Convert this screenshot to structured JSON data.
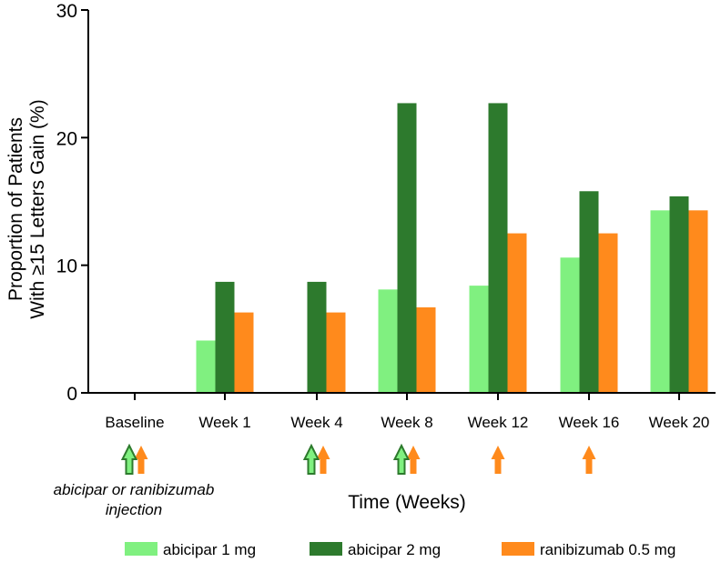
{
  "chart_data": {
    "type": "bar",
    "title": "",
    "xlabel": "Time (Weeks)",
    "ylabel_lines": [
      "Proportion of Patients",
      "With ≥15 Letters Gain (%)"
    ],
    "ylim": [
      0,
      30
    ],
    "yticks": [
      0,
      10,
      20,
      30
    ],
    "categories": [
      "Baseline",
      "Week 1",
      "Week 4",
      "Week 8",
      "Week 12",
      "Week 16",
      "Week 20"
    ],
    "series": [
      {
        "name": "abicipar 1 mg",
        "color": "#80f080",
        "values": [
          0,
          4.1,
          0,
          8.1,
          8.4,
          10.6,
          14.3
        ]
      },
      {
        "name": "abicipar 2 mg",
        "color": "#2d7a2d",
        "values": [
          0,
          8.7,
          8.7,
          22.7,
          22.7,
          15.8,
          15.4
        ]
      },
      {
        "name": "ranibizumab 0.5 mg",
        "color": "#ff8a1c",
        "values": [
          0,
          6.3,
          6.3,
          6.7,
          12.5,
          12.5,
          14.3
        ]
      }
    ],
    "injections": {
      "abicipar": [
        "Baseline",
        "Week 4",
        "Week 8"
      ],
      "ranibizumab": [
        "Baseline",
        "Week 4",
        "Week 8",
        "Week 12",
        "Week 16"
      ]
    },
    "injection_note_lines": [
      "abicipar or ranibizumab",
      "injection"
    ],
    "legend_position": "bottom"
  }
}
